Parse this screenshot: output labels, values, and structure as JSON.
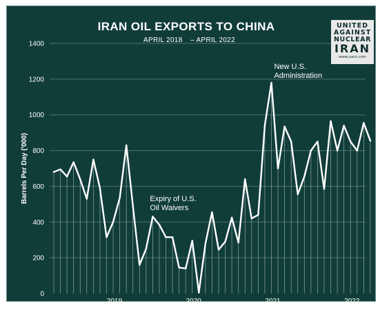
{
  "header": {
    "title": "IRAN OIL EXPORTS TO CHINA",
    "subtitle_start": "APRIL 2018",
    "subtitle_end": "– APRIL 2022"
  },
  "logo": {
    "line1": "UNITED",
    "line2": "AGAINST",
    "line3": "NUCLEAR",
    "line4": "IRAN",
    "line5": "www.uani.com"
  },
  "colors": {
    "background": "#113d39",
    "line": "#ffffff",
    "text": "#ffffff",
    "gridline": "#4f726e"
  },
  "chart_data": {
    "type": "line",
    "title": "IRAN OIL EXPORTS TO CHINA",
    "subtitle": "APRIL 2018 – APRIL 2022",
    "ylabel": "Barrels Per Day ('000)",
    "xlabel": "",
    "ylim": [
      0,
      1400
    ],
    "yticks": [
      0,
      200,
      400,
      600,
      800,
      1000,
      1200,
      1400
    ],
    "xticks": [
      "2019",
      "2020",
      "2021",
      "2022"
    ],
    "x": [
      "2018-04",
      "2018-05",
      "2018-06",
      "2018-07",
      "2018-08",
      "2018-09",
      "2018-10",
      "2018-11",
      "2018-12",
      "2019-01",
      "2019-02",
      "2019-03",
      "2019-04",
      "2019-05",
      "2019-06",
      "2019-07",
      "2019-08",
      "2019-09",
      "2019-10",
      "2019-11",
      "2019-12",
      "2020-01",
      "2020-02",
      "2020-03",
      "2020-04",
      "2020-05",
      "2020-06",
      "2020-07",
      "2020-08",
      "2020-09",
      "2020-10",
      "2020-11",
      "2020-12",
      "2021-01",
      "2021-02",
      "2021-03",
      "2021-04",
      "2021-05",
      "2021-06",
      "2021-07",
      "2021-08",
      "2021-09",
      "2021-10",
      "2021-11",
      "2021-12",
      "2022-01",
      "2022-02",
      "2022-03",
      "2022-04"
    ],
    "values": [
      680,
      695,
      655,
      735,
      640,
      530,
      750,
      590,
      315,
      400,
      535,
      830,
      490,
      160,
      250,
      430,
      385,
      315,
      315,
      145,
      140,
      295,
      5,
      280,
      455,
      245,
      290,
      425,
      285,
      640,
      420,
      440,
      940,
      1180,
      700,
      935,
      850,
      555,
      655,
      800,
      850,
      585,
      965,
      800,
      940,
      850,
      800,
      955,
      855
    ],
    "grid": true,
    "drop_lines": true,
    "annotations": [
      {
        "lines": [
          "Expiry of U.S.",
          "Oil Waivers"
        ],
        "x": "2019-07"
      },
      {
        "lines": [
          "New U.S.",
          "Administration"
        ],
        "x": "2021-01"
      }
    ]
  }
}
